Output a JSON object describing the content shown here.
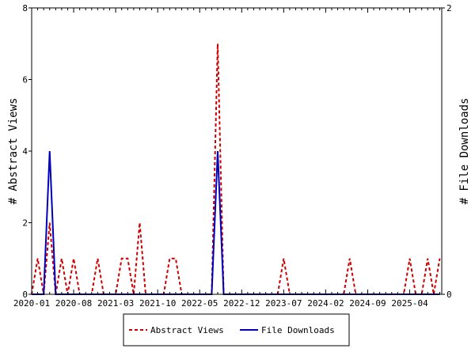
{
  "chart_data": {
    "type": "line",
    "start_month": "2020-01",
    "x_tick_labels": [
      "2020-01",
      "2020-08",
      "2021-03",
      "2021-10",
      "2022-05",
      "2022-12",
      "2023-07",
      "2024-02",
      "2024-09",
      "2025-04"
    ],
    "ylabel": "# Abstract Views",
    "y2label": "# File Downloads",
    "ylim": [
      0,
      8
    ],
    "y2lim": [
      0,
      2
    ],
    "y_ticks": [
      "0",
      "2",
      "4",
      "6",
      "8"
    ],
    "y2_ticks": [
      "0",
      "2"
    ],
    "legend_position": "bottom",
    "series": [
      {
        "name": "Abstract Views",
        "axis": "left",
        "color": "#cc0000",
        "style": "dashed",
        "values": [
          0,
          1,
          0,
          2,
          0,
          1,
          0,
          1,
          0,
          0,
          0,
          1,
          0,
          0,
          0,
          1,
          1,
          0,
          2,
          0,
          0,
          0,
          0,
          1,
          1,
          0,
          0,
          0,
          0,
          0,
          0,
          7,
          0,
          0,
          0,
          0,
          0,
          0,
          0,
          0,
          0,
          0,
          1,
          0,
          0,
          0,
          0,
          0,
          0,
          0,
          0,
          0,
          0,
          1,
          0,
          0,
          0,
          0,
          0,
          0,
          0,
          0,
          0,
          1,
          0,
          0,
          1,
          0,
          1
        ]
      },
      {
        "name": "File Downloads",
        "axis": "right",
        "color": "#0000bb",
        "style": "solid",
        "values": [
          0,
          0,
          0,
          1,
          0,
          0,
          0,
          0,
          0,
          0,
          0,
          0,
          0,
          0,
          0,
          0,
          0,
          0,
          0,
          0,
          0,
          0,
          0,
          0,
          0,
          0,
          0,
          0,
          0,
          0,
          0,
          1,
          0,
          0,
          0,
          0,
          0,
          0,
          0,
          0,
          0,
          0,
          0,
          0,
          0,
          0,
          0,
          0,
          0,
          0,
          0,
          0,
          0,
          0,
          0,
          0,
          0,
          0,
          0,
          0,
          0,
          0,
          0,
          0,
          0,
          0,
          0,
          0,
          0
        ]
      }
    ]
  }
}
